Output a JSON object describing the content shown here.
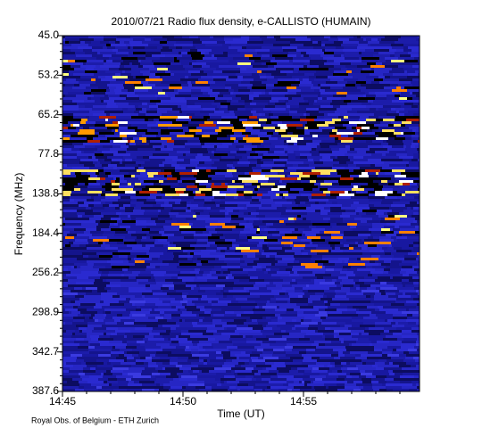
{
  "chart_data": {
    "type": "spectrogram",
    "title": "2010/07/21  Radio flux density, e-CALLISTO (HUMAIN)",
    "y_label": "Frequency (MHz)",
    "x_label": "Time (UT)",
    "y_tick_labels": [
      "45.0",
      "53.2",
      "65.2",
      "77.8",
      "138.8",
      "184.4",
      "256.2",
      "298.9",
      "342.7",
      "387.6"
    ],
    "x": [
      "14:45",
      "14:50",
      "14:55"
    ],
    "xlim": [
      "14:45",
      "15:00"
    ],
    "footer": "Royal Obs. of Belgium - ETH Zurich"
  }
}
